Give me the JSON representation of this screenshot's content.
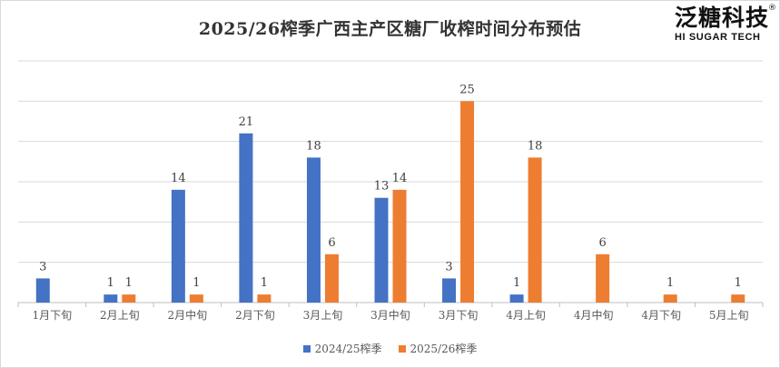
{
  "logo": {
    "cn": "泛糖科技",
    "en": "HI SUGAR TECH",
    "reg": "®"
  },
  "colors": {
    "series1": "#4472C4",
    "series2": "#ED7D31"
  },
  "chart_data": {
    "type": "bar",
    "title": "2025/26榨季广西主产区糖厂收榨时间分布预估",
    "categories": [
      "1月下旬",
      "2月上旬",
      "2月中旬",
      "2月下旬",
      "3月上旬",
      "3月中旬",
      "3月下旬",
      "4月上旬",
      "4月中旬",
      "4月下旬",
      "5月上旬"
    ],
    "series": [
      {
        "name": "2024/25榨季",
        "values": [
          3,
          1,
          14,
          21,
          18,
          13,
          3,
          1,
          null,
          null,
          null
        ]
      },
      {
        "name": "2025/26榨季",
        "values": [
          null,
          1,
          1,
          1,
          6,
          14,
          25,
          18,
          6,
          1,
          1
        ]
      }
    ],
    "ylim": [
      0,
      30
    ],
    "grid": true,
    "legend": "bottom",
    "xlabel": "",
    "ylabel": ""
  }
}
